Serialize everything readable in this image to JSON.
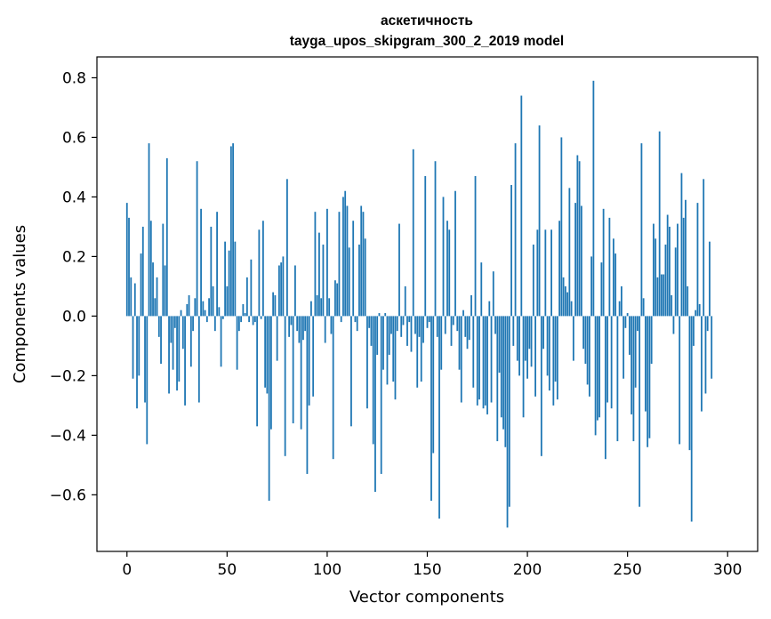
{
  "chart_data": {
    "type": "bar",
    "title": "аскетичность",
    "subtitle": "tayga_upos_skipgram_300_2_2019 model",
    "xlabel": "Vector components",
    "ylabel": "Components values",
    "xlim": [
      -15,
      315
    ],
    "ylim": [
      -0.79,
      0.87
    ],
    "xticks": [
      0,
      50,
      100,
      150,
      200,
      250,
      300
    ],
    "yticks": [
      0.8,
      0.6,
      0.4,
      0.2,
      0.0,
      -0.2,
      -0.4,
      -0.6
    ],
    "ytick_labels": [
      "0.8",
      "0.6",
      "0.4",
      "0.2",
      "0.0",
      "−0.2",
      "−0.4",
      "−0.6"
    ],
    "xtick_labels": [
      "0",
      "50",
      "100",
      "150",
      "200",
      "250",
      "300"
    ],
    "bar_color": "#1f77b4",
    "series": [
      {
        "name": "аскетичность",
        "values": [
          0.38,
          0.33,
          0.13,
          -0.21,
          0.11,
          -0.31,
          -0.2,
          0.21,
          0.3,
          -0.29,
          -0.43,
          0.58,
          0.32,
          0.18,
          0.06,
          0.13,
          -0.07,
          -0.16,
          0.31,
          0.17,
          0.53,
          -0.26,
          -0.09,
          -0.18,
          -0.04,
          -0.25,
          -0.22,
          0.02,
          -0.11,
          -0.3,
          0.04,
          0.07,
          -0.17,
          -0.05,
          0.06,
          0.52,
          -0.29,
          0.36,
          0.05,
          0.02,
          -0.02,
          0.06,
          0.3,
          0.1,
          -0.05,
          0.35,
          0.03,
          -0.17,
          -0.01,
          0.25,
          0.1,
          0.22,
          0.57,
          0.58,
          0.25,
          -0.18,
          -0.05,
          -0.02,
          0.04,
          0.01,
          0.13,
          -0.02,
          0.19,
          -0.03,
          -0.02,
          -0.37,
          0.29,
          -0.01,
          0.32,
          -0.24,
          -0.26,
          -0.62,
          -0.38,
          0.08,
          0.07,
          -0.15,
          0.17,
          0.18,
          0.2,
          -0.47,
          0.46,
          -0.07,
          -0.03,
          -0.36,
          0.17,
          -0.05,
          -0.09,
          -0.38,
          -0.08,
          -0.05,
          -0.53,
          -0.3,
          0.05,
          -0.27,
          0.35,
          0.07,
          0.28,
          0.06,
          0.24,
          -0.09,
          0.36,
          0.06,
          -0.06,
          -0.48,
          0.12,
          0.11,
          0.35,
          -0.02,
          0.4,
          0.42,
          0.37,
          0.23,
          -0.37,
          0.32,
          -0.02,
          -0.05,
          0.24,
          0.37,
          0.35,
          0.26,
          -0.31,
          -0.04,
          -0.1,
          -0.43,
          -0.59,
          -0.13,
          0.01,
          -0.53,
          -0.18,
          0.01,
          -0.23,
          -0.13,
          -0.06,
          -0.22,
          -0.28,
          -0.05,
          0.31,
          -0.07,
          -0.03,
          0.1,
          -0.1,
          -0.02,
          -0.12,
          0.56,
          -0.06,
          -0.24,
          -0.07,
          -0.22,
          -0.09,
          0.47,
          -0.04,
          -0.02,
          -0.62,
          -0.46,
          0.52,
          -0.07,
          -0.68,
          -0.18,
          0.4,
          -0.06,
          0.32,
          0.29,
          -0.1,
          -0.03,
          0.42,
          -0.05,
          -0.18,
          -0.29,
          0.02,
          -0.07,
          -0.11,
          -0.08,
          0.07,
          -0.24,
          0.47,
          -0.3,
          -0.28,
          0.18,
          -0.31,
          -0.3,
          -0.33,
          0.05,
          -0.29,
          0.15,
          -0.06,
          -0.42,
          -0.19,
          -0.34,
          -0.38,
          -0.44,
          -0.71,
          -0.64,
          0.44,
          -0.1,
          0.58,
          -0.15,
          -0.2,
          0.74,
          -0.34,
          -0.15,
          -0.21,
          -0.11,
          -0.17,
          0.24,
          -0.27,
          0.29,
          0.64,
          -0.47,
          -0.11,
          0.29,
          -0.2,
          -0.25,
          0.29,
          -0.3,
          -0.22,
          -0.28,
          0.32,
          0.6,
          0.13,
          0.1,
          0.08,
          0.43,
          0.05,
          -0.15,
          0.38,
          0.54,
          0.52,
          0.37,
          -0.11,
          -0.16,
          -0.23,
          -0.27,
          0.2,
          0.79,
          -0.4,
          -0.35,
          -0.34,
          0.18,
          0.36,
          -0.48,
          -0.29,
          0.33,
          -0.31,
          0.26,
          0.21,
          -0.42,
          0.05,
          0.1,
          -0.21,
          -0.04,
          0.01,
          -0.13,
          -0.33,
          -0.42,
          -0.24,
          -0.05,
          -0.64,
          0.58,
          0.06,
          -0.32,
          -0.44,
          -0.41,
          -0.16,
          0.31,
          0.26,
          0.13,
          0.62,
          0.14,
          0.14,
          0.24,
          0.34,
          0.3,
          0.07,
          -0.06,
          0.23,
          0.31,
          -0.43,
          0.48,
          0.33,
          0.39,
          0.1,
          -0.45,
          -0.69,
          -0.1,
          0.02,
          0.38,
          0.04,
          -0.32,
          0.46,
          -0.26,
          -0.05,
          0.25,
          -0.21
        ]
      }
    ]
  }
}
